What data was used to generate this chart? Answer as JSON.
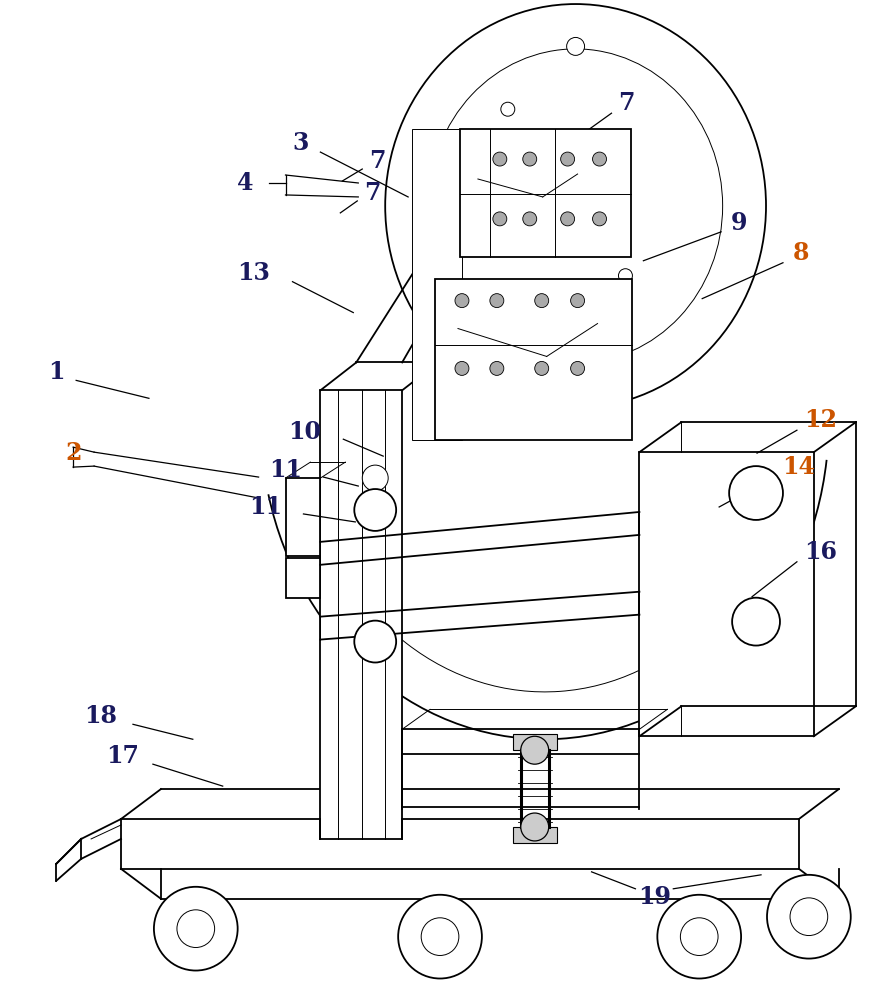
{
  "bg_color": "#ffffff",
  "line_color": "#000000",
  "orange": "#cc5500",
  "dark": "#1a1a5e",
  "lw_main": 1.3,
  "lw_thin": 0.7,
  "label_fontsize": 17
}
